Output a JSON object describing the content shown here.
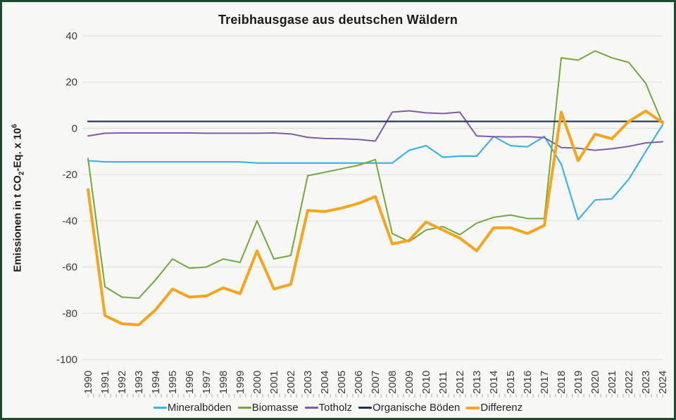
{
  "frame": {
    "border_color": "#1b4a31",
    "background": "#f7f8f5"
  },
  "chart_data": {
    "type": "line",
    "title": "Treibhausgase aus deutschen Wäldern",
    "ylabel": "Emissionen in t CO2-Eq. x 10^6",
    "ylabel_parts": {
      "p1": "Emissionen in t CO",
      "sub": "2",
      "p2": "-Eq. x 10",
      "sup": "6"
    },
    "xlabel": "",
    "ylim": [
      -100,
      40
    ],
    "yticks": [
      40,
      20,
      0,
      -20,
      -40,
      -60,
      -80,
      -100
    ],
    "grid": true,
    "grid_color": "#d9ddd8",
    "tick_color": "#a9b0a9",
    "legend_position": "bottom",
    "x": [
      1990,
      1991,
      1992,
      1993,
      1994,
      1995,
      1996,
      1997,
      1998,
      1999,
      2000,
      2001,
      2002,
      2003,
      2004,
      2005,
      2006,
      2007,
      2008,
      2009,
      2010,
      2011,
      2012,
      2013,
      2014,
      2015,
      2016,
      2017,
      2018,
      2019,
      2020,
      2021,
      2022,
      2023,
      2024
    ],
    "series": [
      {
        "name": "Mineralböden",
        "color": "#3bb4e5",
        "width": 2.2,
        "values": [
          -14,
          -14.5,
          -14.5,
          -14.5,
          -14.5,
          -14.5,
          -14.5,
          -14.5,
          -14.5,
          -14.5,
          -15,
          -15,
          -15,
          -15,
          -15,
          -15,
          -15,
          -15,
          -15,
          -9.5,
          -7.5,
          -12.5,
          -12,
          -12,
          -3.5,
          -7.5,
          -8,
          -3.5,
          -15.5,
          -39.5,
          -31,
          -30.5,
          -22,
          -10,
          1.5
        ]
      },
      {
        "name": "Biomasse",
        "color": "#70a83e",
        "width": 2,
        "values": [
          -13,
          -68.5,
          -73,
          -73.5,
          -65.5,
          -56.5,
          -60.5,
          -60,
          -56.5,
          -58,
          -40,
          -56.5,
          -55,
          -20.5,
          -19,
          -17.5,
          -16,
          -13.5,
          -45.5,
          -49,
          -44,
          -42.5,
          -46,
          -41,
          -38.5,
          -37.5,
          -39,
          -39,
          30.5,
          29.5,
          33.5,
          30.5,
          28.5,
          19.5,
          2
        ]
      },
      {
        "name": "Totholz",
        "color": "#7d5ba6",
        "width": 2,
        "values": [
          -3.3,
          -2.1,
          -2,
          -2,
          -2,
          -2,
          -2,
          -2.1,
          -2.1,
          -2.1,
          -2.1,
          -2,
          -2.4,
          -3.9,
          -4.4,
          -4.5,
          -4.8,
          -5.5,
          7,
          7.6,
          6.7,
          6.4,
          7,
          -3.3,
          -3.6,
          -3.7,
          -3.6,
          -4,
          -8.3,
          -8.6,
          -9.5,
          -8.8,
          -7.8,
          -6.3,
          -5.8
        ]
      },
      {
        "name": "Organische Böden",
        "color": "#1f3054",
        "width": 2.2,
        "values": [
          3,
          3,
          3,
          3,
          3,
          3,
          3,
          3,
          3,
          3,
          3,
          3,
          3,
          3,
          3,
          3,
          3,
          3,
          3,
          3,
          3,
          3,
          3,
          3,
          3,
          3,
          3,
          3,
          3,
          3,
          3,
          3,
          3,
          3,
          3
        ]
      },
      {
        "name": "Differenz",
        "color": "#f7a41d",
        "width": 4,
        "values": [
          -26.5,
          -81,
          -84.5,
          -85,
          -78.5,
          -69.5,
          -73,
          -72.5,
          -69,
          -71.5,
          -53,
          -69.5,
          -67.5,
          -35.5,
          -36,
          -34.5,
          -32.5,
          -29.5,
          -50,
          -48.5,
          -40.5,
          -44,
          -47.5,
          -53,
          -43,
          -43,
          -45.5,
          -42,
          7,
          -14,
          -2.5,
          -4.5,
          3,
          7.5,
          2.5
        ]
      }
    ]
  }
}
